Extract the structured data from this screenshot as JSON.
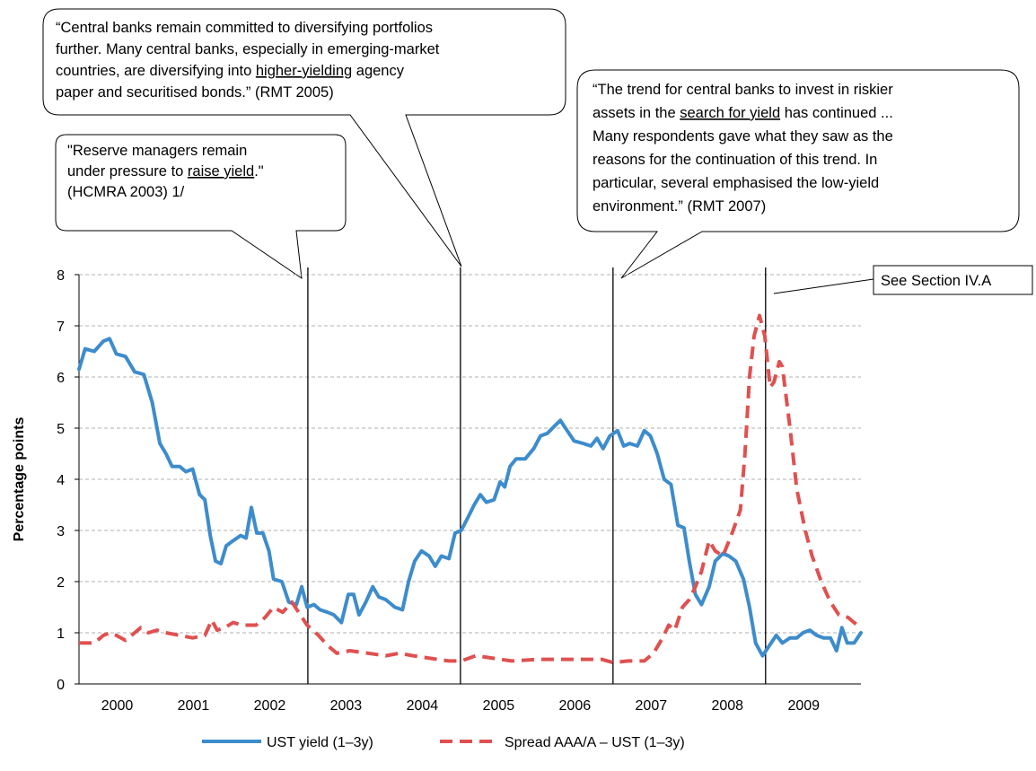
{
  "chart_data": {
    "type": "line",
    "y_label": "Percentage  points",
    "xlim": [
      2000,
      2010.25
    ],
    "xticks": [
      {
        "value": 2000.5,
        "label": "2000"
      },
      {
        "value": 2001.5,
        "label": "2001"
      },
      {
        "value": 2002.5,
        "label": "2002"
      },
      {
        "value": 2003.5,
        "label": "2003"
      },
      {
        "value": 2004.5,
        "label": "2004"
      },
      {
        "value": 2005.5,
        "label": "2005"
      },
      {
        "value": 2006.5,
        "label": "2006"
      },
      {
        "value": 2007.5,
        "label": "2007"
      },
      {
        "value": 2008.5,
        "label": "2008"
      },
      {
        "value": 2009.5,
        "label": "2009"
      }
    ],
    "ylim": [
      0,
      8
    ],
    "yticks": [
      0,
      1,
      2,
      3,
      4,
      5,
      6,
      7,
      8
    ],
    "grid": true,
    "vlines": [
      2003,
      2005,
      2007,
      2009
    ],
    "series": [
      {
        "name": "UST yield (1–3y)",
        "color": "#3d8ccc",
        "dash": false,
        "x": [
          2000.0,
          2000.08,
          2000.2,
          2000.32,
          2000.4,
          2000.49,
          2000.61,
          2000.73,
          2000.85,
          2000.96,
          2001.06,
          2001.14,
          2001.22,
          2001.32,
          2001.4,
          2001.49,
          2001.58,
          2001.65,
          2001.72,
          2001.79,
          2001.86,
          2001.93,
          2002.02,
          2002.12,
          2002.19,
          2002.26,
          2002.33,
          2002.41,
          2002.49,
          2002.55,
          2002.66,
          2002.75,
          2002.85,
          2002.92,
          2002.99,
          2003.08,
          2003.16,
          2003.26,
          2003.34,
          2003.44,
          2003.53,
          2003.6,
          2003.67,
          2003.76,
          2003.85,
          2003.93,
          2004.02,
          2004.14,
          2004.24,
          2004.32,
          2004.4,
          2004.49,
          2004.59,
          2004.67,
          2004.75,
          2004.85,
          2004.93,
          2005.01,
          2005.08,
          2005.18,
          2005.26,
          2005.34,
          2005.44,
          2005.52,
          2005.58,
          2005.65,
          2005.73,
          2005.85,
          2005.96,
          2006.05,
          2006.14,
          2006.24,
          2006.31,
          2006.4,
          2006.49,
          2006.61,
          2006.71,
          2006.79,
          2006.87,
          2006.96,
          2007.06,
          2007.14,
          2007.22,
          2007.32,
          2007.41,
          2007.49,
          2007.58,
          2007.67,
          2007.76,
          2007.85,
          2007.93,
          2008.0,
          2008.08,
          2008.16,
          2008.26,
          2008.34,
          2008.44,
          2008.52,
          2008.61,
          2008.71,
          2008.79,
          2008.87,
          2008.96,
          2009.05,
          2009.14,
          2009.22,
          2009.32,
          2009.41,
          2009.49,
          2009.58,
          2009.67,
          2009.76,
          2009.85,
          2009.93,
          2010.0,
          2010.07,
          2010.16,
          2010.25
        ],
        "values": [
          6.15,
          6.55,
          6.5,
          6.7,
          6.75,
          6.45,
          6.4,
          6.1,
          6.05,
          5.5,
          4.7,
          4.5,
          4.25,
          4.25,
          4.15,
          4.2,
          3.7,
          3.6,
          2.9,
          2.4,
          2.35,
          2.7,
          2.8,
          2.9,
          2.85,
          3.45,
          2.95,
          2.95,
          2.6,
          2.05,
          2.0,
          1.6,
          1.55,
          1.9,
          1.5,
          1.55,
          1.45,
          1.4,
          1.35,
          1.2,
          1.75,
          1.75,
          1.35,
          1.6,
          1.9,
          1.7,
          1.65,
          1.5,
          1.45,
          2.0,
          2.4,
          2.6,
          2.5,
          2.3,
          2.5,
          2.45,
          2.95,
          3.0,
          3.2,
          3.5,
          3.7,
          3.55,
          3.6,
          3.95,
          3.85,
          4.25,
          4.4,
          4.4,
          4.6,
          4.85,
          4.9,
          5.05,
          5.15,
          4.95,
          4.75,
          4.7,
          4.65,
          4.8,
          4.6,
          4.85,
          4.95,
          4.65,
          4.7,
          4.65,
          4.95,
          4.85,
          4.5,
          4.0,
          3.9,
          3.1,
          3.05,
          2.4,
          1.75,
          1.55,
          1.9,
          2.4,
          2.55,
          2.5,
          2.4,
          2.05,
          1.5,
          0.8,
          0.55,
          0.75,
          0.95,
          0.8,
          0.9,
          0.9,
          1.0,
          1.05,
          0.95,
          0.9,
          0.9,
          0.65,
          1.1,
          0.8,
          0.8,
          1.0
        ]
      },
      {
        "name": "Spread AAA/A – UST (1–3y)",
        "color": "#e05050",
        "dash": true,
        "x": [
          2000.0,
          2000.2,
          2000.32,
          2000.4,
          2000.49,
          2000.61,
          2000.73,
          2000.81,
          2000.91,
          2001.02,
          2001.14,
          2001.32,
          2001.49,
          2001.65,
          2001.74,
          2001.81,
          2001.91,
          2002.02,
          2002.14,
          2002.32,
          2002.44,
          2002.55,
          2002.67,
          2002.79,
          2002.88,
          2002.99,
          2003.14,
          2003.26,
          2003.38,
          2003.55,
          2003.79,
          2004.02,
          2004.2,
          2004.38,
          2004.61,
          2004.85,
          2005.01,
          2005.2,
          2005.44,
          2005.67,
          2006.02,
          2006.49,
          2006.85,
          2007.0,
          2007.2,
          2007.41,
          2007.53,
          2007.65,
          2007.73,
          2007.81,
          2007.91,
          2008.0,
          2008.08,
          2008.16,
          2008.26,
          2008.34,
          2008.44,
          2008.55,
          2008.67,
          2008.73,
          2008.79,
          2008.85,
          2008.92,
          2008.99,
          2009.06,
          2009.11,
          2009.18,
          2009.22,
          2009.32,
          2009.41,
          2009.52,
          2009.61,
          2009.73,
          2009.85,
          2009.96,
          2010.08,
          2010.16,
          2010.25
        ],
        "values": [
          0.8,
          0.8,
          0.95,
          1.0,
          0.95,
          0.85,
          1.0,
          1.1,
          1.0,
          1.05,
          1.0,
          0.95,
          0.9,
          0.95,
          1.25,
          1.05,
          1.1,
          1.2,
          1.15,
          1.15,
          1.3,
          1.5,
          1.4,
          1.6,
          1.4,
          1.15,
          0.95,
          0.75,
          0.6,
          0.65,
          0.6,
          0.55,
          0.6,
          0.55,
          0.5,
          0.45,
          0.45,
          0.55,
          0.5,
          0.45,
          0.48,
          0.48,
          0.48,
          0.42,
          0.45,
          0.45,
          0.6,
          0.9,
          1.15,
          1.05,
          1.5,
          1.65,
          1.9,
          2.2,
          2.8,
          2.6,
          2.5,
          2.9,
          3.4,
          4.5,
          6.0,
          6.8,
          7.2,
          6.8,
          5.8,
          5.9,
          6.3,
          6.2,
          5.0,
          3.8,
          3.0,
          2.5,
          2.0,
          1.6,
          1.35,
          1.3,
          1.2,
          1.1
        ]
      }
    ],
    "annotations": [
      {
        "lines": [
          "\"Reserve managers remain",
          "under pressure to raise yield.\"",
          "(HCMRA 2003)  1/"
        ],
        "underlined": [
          "raise yield"
        ]
      },
      {
        "lines": [
          "“Central banks remain  committed to diversifying portfolios",
          "further. Many central banks, especially in emerging-market",
          "countries, are diversifying into higher-yielding agency",
          "paper and securitised bonds.” (RMT 2005)"
        ],
        "underlined": [
          "higher-yielding"
        ]
      },
      {
        "lines": [
          "“The trend for central banks to invest in riskier",
          "assets in the search for yield has continued ...",
          "Many respondents gave what they saw as the",
          "reasons for the continuation of this trend. In",
          "particular, several emphasised the low-yield",
          "environment.” (RMT 2007)"
        ],
        "underlined": [
          "search for yield"
        ]
      },
      {
        "lines": [
          "See Section IV.A"
        ],
        "underlined": []
      }
    ]
  }
}
